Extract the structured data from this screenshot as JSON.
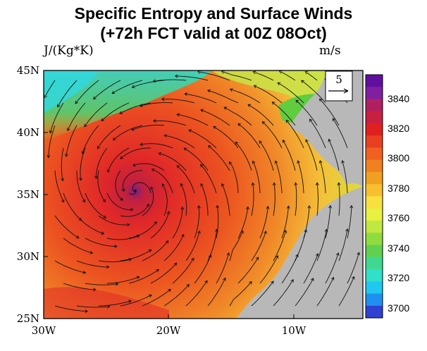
{
  "title_line1": "Specific Entropy and Surface Winds",
  "title_line2": "(+72h FCT valid at 00Z 08Oct)",
  "units_left": "J/(Kg*K)",
  "units_right": "m/s",
  "ref_vector": {
    "label": "5"
  },
  "lat_labels": [
    "45N",
    "40N",
    "35N",
    "30N",
    "25N"
  ],
  "lon_labels": [
    "30W",
    "20W",
    "10W"
  ],
  "colorbar": {
    "labels": [
      "3840",
      "3820",
      "3800",
      "3780",
      "3760",
      "3740",
      "3720",
      "3700"
    ],
    "colors": [
      "#3040d0",
      "#2090f0",
      "#20c8f0",
      "#30e0c8",
      "#40d890",
      "#60d050",
      "#90dc40",
      "#c0e840",
      "#e8f040",
      "#f8e040",
      "#f8c030",
      "#f0a020",
      "#f08020",
      "#f06020",
      "#e84020",
      "#e02020",
      "#c82040",
      "#b02060",
      "#8020a0",
      "#6010a0"
    ]
  },
  "chart_data": {
    "type": "map",
    "title": "Specific Entropy and Surface Winds (+72h FCT valid at 00Z 08Oct)",
    "lon_range": [
      -30,
      -5
    ],
    "lat_range": [
      25,
      45
    ],
    "field": "Specific entropy (J/(Kg*K))",
    "colorbar_range": [
      3690,
      3850
    ],
    "colorbar_ticks": [
      3840,
      3820,
      3800,
      3780,
      3760,
      3740,
      3720,
      3700
    ],
    "vectors": "Surface wind streamlines (m/s)",
    "reference_vector_ms": 5,
    "cyclone_center": {
      "lon": -22.5,
      "lat": 35.3
    }
  }
}
